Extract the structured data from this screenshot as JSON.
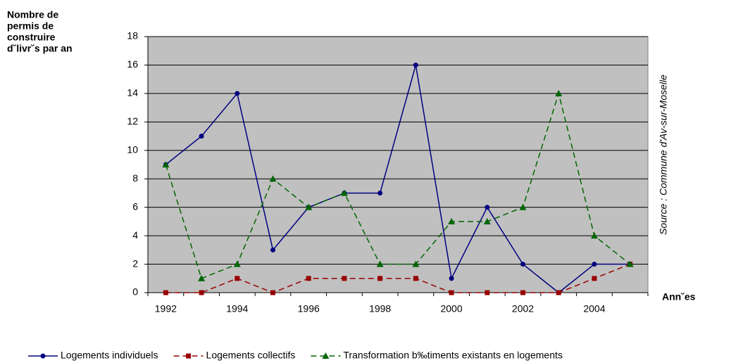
{
  "chart_data": {
    "type": "line",
    "ylabel_lines": [
      "Nombre de",
      "permis de",
      "construire",
      "d˘livr˘s par an"
    ],
    "xlabel": "Ann˘es",
    "source": "Source : Commune d'Av-sur-Moselle",
    "categories": [
      "1992",
      null,
      "1994",
      null,
      "1996",
      null,
      "1998",
      null,
      "2000",
      null,
      "2002",
      null,
      "2004",
      null
    ],
    "series": [
      {
        "name": "Logements individuels",
        "color": "#000080",
        "line_style": "solid",
        "marker": "circle",
        "values": [
          9,
          11,
          14,
          3,
          6,
          7,
          7,
          16,
          1,
          6,
          2,
          0,
          2,
          2
        ]
      },
      {
        "name": "Logements collectifs",
        "color": "#990000",
        "line_style": "dashed",
        "marker": "square",
        "values": [
          0,
          0,
          1,
          0,
          1,
          1,
          1,
          1,
          0,
          0,
          0,
          0,
          1,
          2
        ]
      },
      {
        "name": "Transformation b‰timents existants en logements",
        "color": "#006600",
        "line_style": "dashed",
        "marker": "triangle",
        "values": [
          9,
          1,
          2,
          8,
          6,
          7,
          2,
          2,
          5,
          5,
          6,
          14,
          4,
          2
        ]
      }
    ],
    "ylim": [
      0,
      18
    ],
    "yticks": [
      0,
      2,
      4,
      6,
      8,
      10,
      12,
      14,
      16,
      18
    ],
    "grid": true,
    "plot_background": "#c0c0c0",
    "legend": "bottom"
  }
}
